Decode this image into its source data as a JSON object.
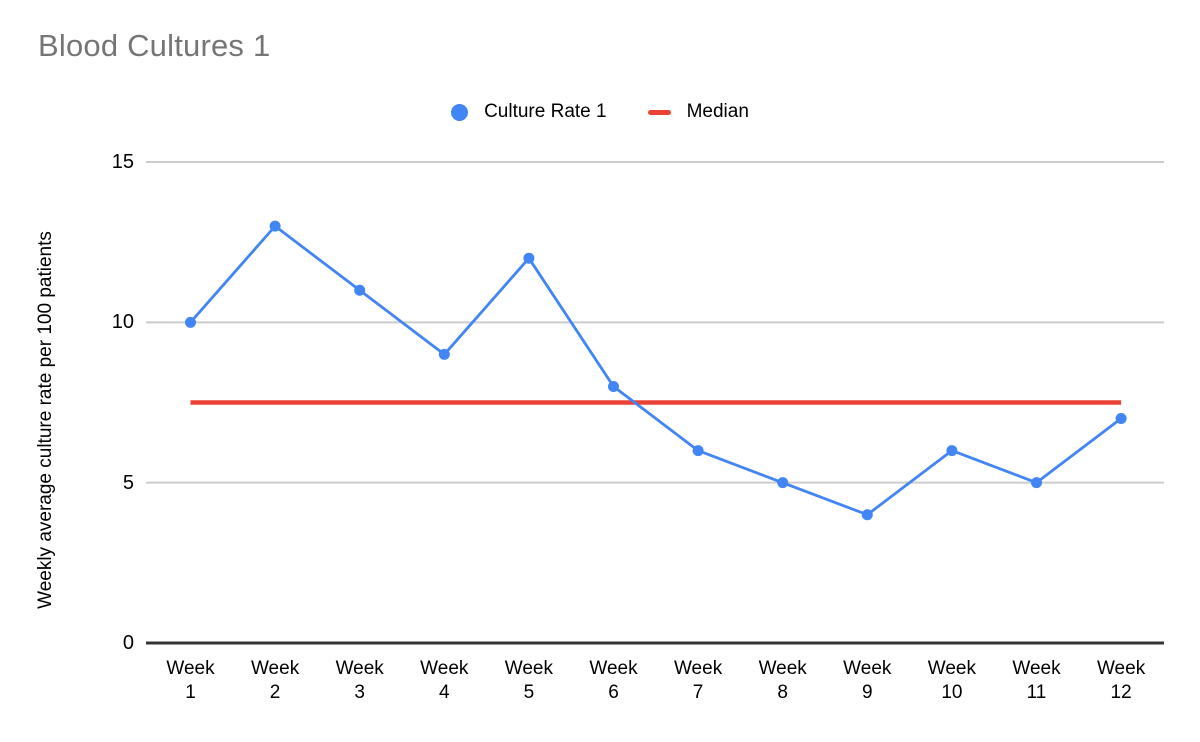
{
  "chart_data": {
    "type": "line",
    "title": "Blood Cultures 1",
    "categories": [
      "Week 1",
      "Week 2",
      "Week 3",
      "Week 4",
      "Week 5",
      "Week 6",
      "Week 7",
      "Week 8",
      "Week 9",
      "Week 10",
      "Week 11",
      "Week 12"
    ],
    "series": [
      {
        "name": "Culture Rate 1",
        "color": "#4285F4",
        "marker": "circle",
        "values": [
          10,
          13,
          11,
          9,
          12,
          8,
          6,
          5,
          4,
          6,
          5,
          7
        ]
      },
      {
        "name": "Median",
        "color": "#EA4335",
        "marker": "dash",
        "values": [
          7.5,
          7.5,
          7.5,
          7.5,
          7.5,
          7.5,
          7.5,
          7.5,
          7.5,
          7.5,
          7.5,
          7.5
        ]
      }
    ],
    "xlabel": "",
    "ylabel": "Weekly average culture rate per 100 patients",
    "ylim": [
      0,
      15
    ],
    "yticks": [
      0,
      5,
      10,
      15
    ],
    "grid": true,
    "legend_position": "top",
    "colors": {
      "title_text": "#757575",
      "axis_text": "#000000",
      "gridline": "#CCCCCC",
      "axis_baseline": "#333333",
      "background": "#FFFFFF"
    }
  }
}
